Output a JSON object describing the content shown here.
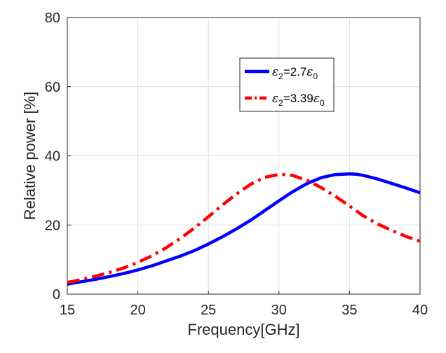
{
  "chart_data": {
    "type": "line",
    "xlabel": "Frequency[GHz]",
    "ylabel": "Relative power [%]",
    "xlim": [
      15,
      40
    ],
    "ylim": [
      0,
      80
    ],
    "xticks": [
      15,
      20,
      25,
      30,
      35,
      40
    ],
    "yticks": [
      0,
      20,
      40,
      60,
      80
    ],
    "grid": true,
    "legend_position": "top-right inside",
    "series": [
      {
        "name": "ε2=2.7ε0",
        "legend": {
          "symbol": "ε",
          "sub": "2",
          "mid": "=2.7",
          "symbol2": "ε",
          "sub2": "0"
        },
        "color": "#0000ff",
        "style": "solid",
        "x": [
          15,
          16,
          17,
          18,
          19,
          20,
          21,
          22,
          23,
          24,
          25,
          26,
          27,
          28,
          29,
          30,
          31,
          32,
          33,
          34,
          35,
          35.5,
          36,
          37,
          38,
          39,
          40
        ],
        "y": [
          2.9,
          3.6,
          4.3,
          5.1,
          6.0,
          7.0,
          8.2,
          9.6,
          11.0,
          12.6,
          14.5,
          16.6,
          18.9,
          21.4,
          24.2,
          27.0,
          29.7,
          32.0,
          33.7,
          34.6,
          34.8,
          34.7,
          34.3,
          33.3,
          32.0,
          30.7,
          29.3
        ]
      },
      {
        "name": "ε2=3.39ε0",
        "legend": {
          "symbol": "ε",
          "sub": "2",
          "mid": "=3.39",
          "symbol2": "ε",
          "sub2": "0"
        },
        "color": "#ff0000",
        "style": "dashdot",
        "x": [
          15,
          16,
          17,
          18,
          19,
          20,
          21,
          22,
          23,
          24,
          25,
          26,
          27,
          28,
          29,
          30,
          30.5,
          31,
          32,
          33,
          34,
          35,
          36,
          37,
          38,
          39,
          40
        ],
        "y": [
          3.4,
          4.2,
          5.2,
          6.3,
          7.6,
          9.2,
          11.1,
          13.4,
          16.1,
          19.1,
          22.4,
          25.8,
          29.0,
          31.8,
          33.8,
          34.6,
          34.6,
          34.3,
          32.9,
          30.8,
          28.3,
          25.5,
          22.6,
          20.3,
          18.4,
          16.7,
          15.3
        ]
      }
    ]
  }
}
